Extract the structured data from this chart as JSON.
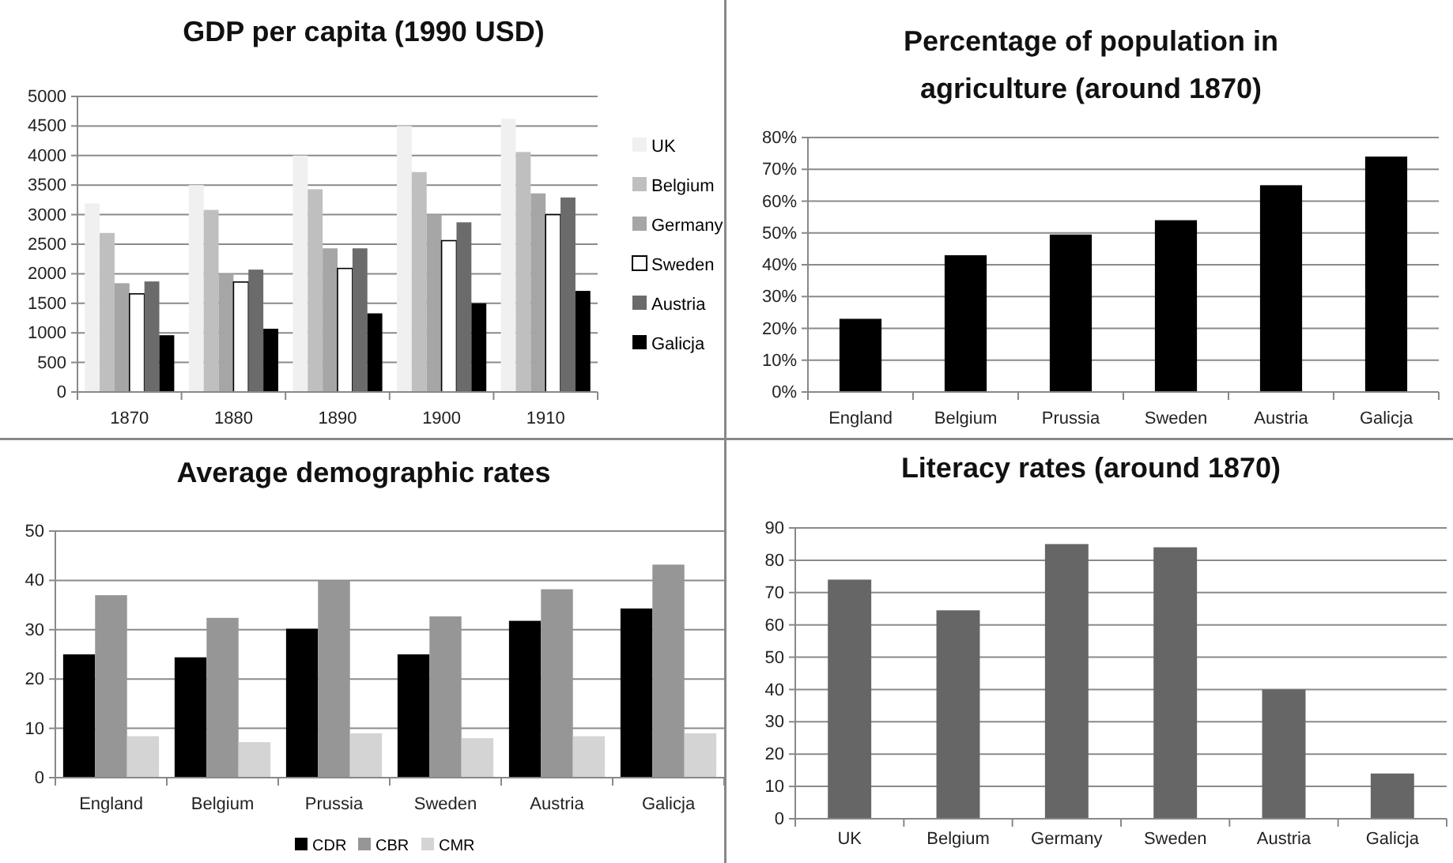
{
  "chart_data": [
    {
      "type": "bar",
      "title": "GDP per capita (1990 USD)",
      "categories": [
        "1870",
        "1880",
        "1890",
        "1900",
        "1910"
      ],
      "series": [
        {
          "name": "UK",
          "color": "#f0f0f0",
          "values": [
            3190,
            3500,
            4000,
            4500,
            4620
          ]
        },
        {
          "name": "Belgium",
          "color": "#bfbfbf",
          "values": [
            2690,
            3080,
            3430,
            3720,
            4060
          ]
        },
        {
          "name": "Germany",
          "color": "#a6a6a6",
          "values": [
            1840,
            2000,
            2430,
            3000,
            3360
          ]
        },
        {
          "name": "Sweden",
          "color": "#ffffff",
          "values": [
            1660,
            1860,
            2090,
            2560,
            3000
          ]
        },
        {
          "name": "Austria",
          "color": "#6b6b6b",
          "values": [
            1870,
            2070,
            2430,
            2870,
            3290
          ]
        },
        {
          "name": "Galicja",
          "color": "#000000",
          "values": [
            960,
            1070,
            1330,
            1500,
            1710
          ]
        }
      ],
      "ylim": [
        0,
        5000
      ],
      "yticks": [
        0,
        500,
        1000,
        1500,
        2000,
        2500,
        3000,
        3500,
        4000,
        4500,
        5000
      ],
      "grid": "y",
      "legend": "right"
    },
    {
      "type": "bar",
      "title": "Percentage of population in agriculture (around 1870)",
      "categories": [
        "England",
        "Belgium",
        "Prussia",
        "Sweden",
        "Austria",
        "Galicja"
      ],
      "series": [
        {
          "color": "#000000",
          "values": [
            23,
            43,
            49.5,
            54,
            65,
            74
          ]
        }
      ],
      "ylim": [
        0,
        80
      ],
      "yticks": [
        {
          "value": 0,
          "label": "0%"
        },
        {
          "value": 10,
          "label": "10%"
        },
        {
          "value": 20,
          "label": "20%"
        },
        {
          "value": 30,
          "label": "30%"
        },
        {
          "value": 40,
          "label": "40%"
        },
        {
          "value": 50,
          "label": "50%"
        },
        {
          "value": 60,
          "label": "60%"
        },
        {
          "value": 70,
          "label": "70%"
        },
        {
          "value": 80,
          "label": "80%"
        }
      ],
      "grid": "y"
    },
    {
      "type": "bar",
      "title": "Average demographic rates",
      "categories": [
        "England",
        "Belgium",
        "Prussia",
        "Sweden",
        "Austria",
        "Galicja"
      ],
      "series": [
        {
          "name": "CDR",
          "color": "#000000",
          "values": [
            25,
            24.4,
            30.2,
            25,
            31.8,
            34.3
          ]
        },
        {
          "name": "CBR",
          "color": "#969696",
          "values": [
            37,
            32.4,
            40,
            32.7,
            38.2,
            43.2
          ]
        },
        {
          "name": "CMR",
          "color": "#d4d4d4",
          "values": [
            8.4,
            7.2,
            9,
            8,
            8.4,
            9
          ]
        }
      ],
      "ylim": [
        0,
        50
      ],
      "yticks": [
        0,
        10,
        20,
        30,
        40,
        50
      ],
      "grid": "y",
      "legend": "bottom"
    },
    {
      "type": "bar",
      "title": "Literacy rates (around 1870)",
      "categories": [
        "UK",
        "Belgium",
        "Germany",
        "Sweden",
        "Austria",
        "Galicja"
      ],
      "series": [
        {
          "color": "#666666",
          "values": [
            74,
            64.5,
            85,
            84,
            40,
            14
          ]
        }
      ],
      "ylim": [
        0,
        90
      ],
      "yticks": [
        0,
        10,
        20,
        30,
        40,
        50,
        60,
        70,
        80,
        90
      ],
      "grid": "y"
    }
  ]
}
